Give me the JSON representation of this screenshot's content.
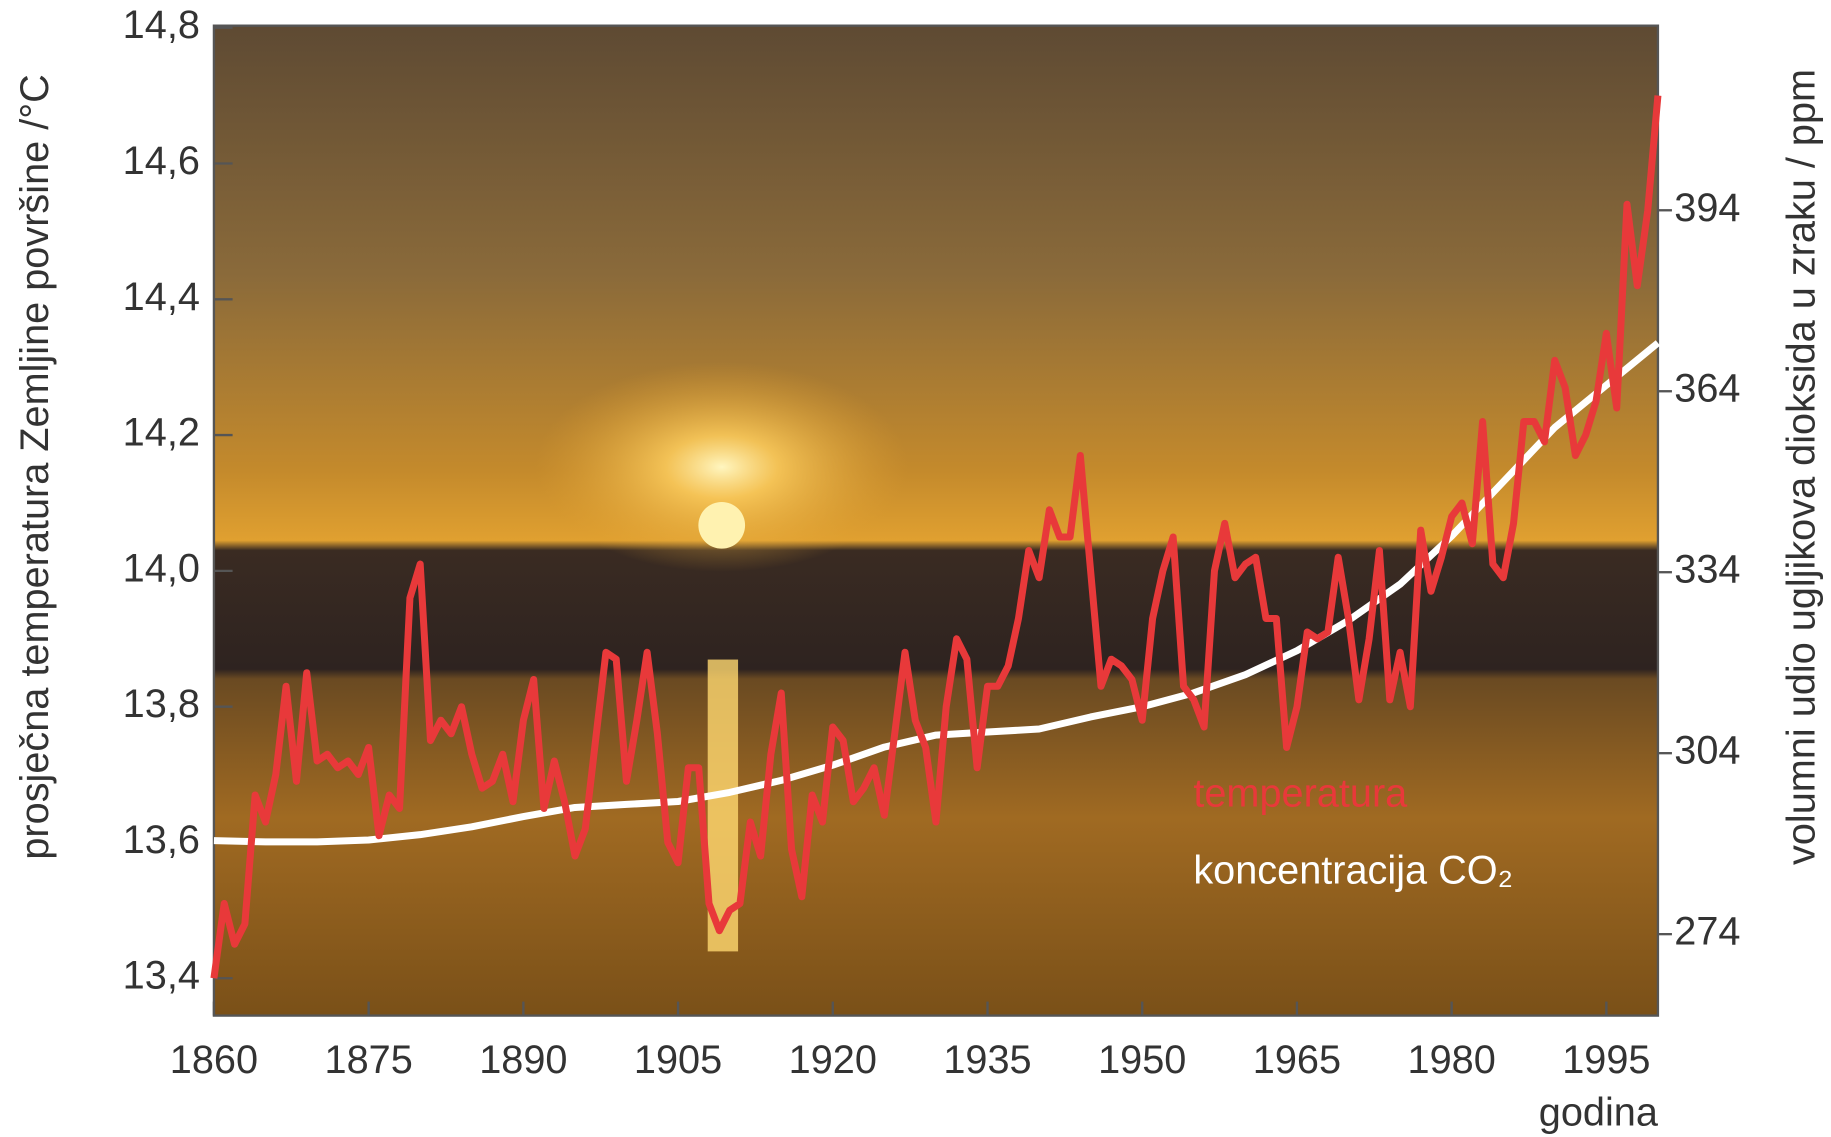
{
  "chart_data": {
    "type": "line",
    "x_label": "godina",
    "y_label": "prosječna temperatura Zemljine površine /°C",
    "y2_label": "volumni udio ugljikova dioksida u zraku / ppm",
    "xlim": [
      1860,
      2000
    ],
    "xticks": [
      1860,
      1875,
      1890,
      1905,
      1920,
      1935,
      1950,
      1965,
      1980,
      1995
    ],
    "ylim": [
      13.345,
      14.803
    ],
    "yticks": [
      {
        "value": 13.4,
        "label": "13,4"
      },
      {
        "value": 13.6,
        "label": "13,6"
      },
      {
        "value": 13.8,
        "label": "13,8"
      },
      {
        "value": 14.0,
        "label": "14,0"
      },
      {
        "value": 14.2,
        "label": "14,2"
      },
      {
        "value": 14.4,
        "label": "14,4"
      },
      {
        "value": 14.6,
        "label": "14,6"
      },
      {
        "value": 14.8,
        "label": "14,8"
      }
    ],
    "y2lim": [
      260.5,
      424.6
    ],
    "y2ticks": [
      274,
      304,
      334,
      364,
      394
    ],
    "series": [
      {
        "name": "temperatura",
        "color": "#e8393a",
        "x": [
          1860,
          1861,
          1862,
          1863,
          1864,
          1865,
          1866,
          1867,
          1868,
          1869,
          1870,
          1871,
          1872,
          1873,
          1874,
          1875,
          1876,
          1877,
          1878,
          1879,
          1880,
          1881,
          1882,
          1883,
          1884,
          1885,
          1886,
          1887,
          1888,
          1889,
          1890,
          1891,
          1892,
          1893,
          1894,
          1895,
          1896,
          1897,
          1898,
          1899,
          1900,
          1901,
          1902,
          1903,
          1904,
          1905,
          1906,
          1907,
          1908,
          1909,
          1910,
          1911,
          1912,
          1913,
          1914,
          1915,
          1916,
          1917,
          1918,
          1919,
          1920,
          1921,
          1922,
          1923,
          1924,
          1925,
          1926,
          1927,
          1928,
          1929,
          1930,
          1931,
          1932,
          1933,
          1934,
          1935,
          1936,
          1937,
          1938,
          1939,
          1940,
          1941,
          1942,
          1943,
          1944,
          1945,
          1946,
          1947,
          1948,
          1949,
          1950,
          1951,
          1952,
          1953,
          1954,
          1955,
          1956,
          1957,
          1958,
          1959,
          1960,
          1961,
          1962,
          1963,
          1964,
          1965,
          1966,
          1967,
          1968,
          1969,
          1970,
          1971,
          1972,
          1973,
          1974,
          1975,
          1976,
          1977,
          1978,
          1979,
          1980,
          1981,
          1982,
          1983,
          1984,
          1985,
          1986,
          1987,
          1988,
          1989,
          1990,
          1991,
          1992,
          1993,
          1994,
          1995,
          1996,
          1997,
          1998,
          1999,
          2000
        ],
        "values": [
          13.4,
          13.51,
          13.45,
          13.48,
          13.67,
          13.63,
          13.7,
          13.83,
          13.69,
          13.85,
          13.72,
          13.73,
          13.71,
          13.72,
          13.7,
          13.74,
          13.61,
          13.67,
          13.65,
          13.96,
          14.01,
          13.75,
          13.78,
          13.76,
          13.8,
          13.73,
          13.68,
          13.69,
          13.73,
          13.66,
          13.78,
          13.84,
          13.65,
          13.72,
          13.66,
          13.58,
          13.62,
          13.75,
          13.88,
          13.87,
          13.69,
          13.78,
          13.88,
          13.76,
          13.6,
          13.57,
          13.71,
          13.71,
          13.51,
          13.47,
          13.5,
          13.51,
          13.63,
          13.58,
          13.73,
          13.82,
          13.59,
          13.52,
          13.67,
          13.63,
          13.77,
          13.75,
          13.66,
          13.68,
          13.71,
          13.64,
          13.76,
          13.88,
          13.78,
          13.74,
          13.63,
          13.8,
          13.9,
          13.87,
          13.71,
          13.83,
          13.83,
          13.86,
          13.93,
          14.03,
          13.99,
          14.09,
          14.05,
          14.05,
          14.17,
          14.0,
          13.83,
          13.87,
          13.86,
          13.84,
          13.78,
          13.93,
          14.0,
          14.05,
          13.83,
          13.81,
          13.77,
          14.0,
          14.07,
          13.99,
          14.01,
          14.02,
          13.93,
          13.93,
          13.74,
          13.8,
          13.91,
          13.9,
          13.91,
          14.02,
          13.93,
          13.81,
          13.9,
          14.03,
          13.81,
          13.88,
          13.8,
          14.06,
          13.97,
          14.02,
          14.08,
          14.1,
          14.04,
          14.22,
          14.01,
          13.99,
          14.07,
          14.22,
          14.22,
          14.19,
          14.31,
          14.27,
          14.17,
          14.2,
          14.25,
          14.35,
          14.24,
          14.54,
          14.42,
          14.53,
          14.7
        ]
      },
      {
        "name": "koncentracija CO₂",
        "color": "#ffffff",
        "axis": "y2",
        "x": [
          1860,
          1865,
          1870,
          1875,
          1880,
          1885,
          1890,
          1895,
          1900,
          1905,
          1910,
          1915,
          1920,
          1925,
          1930,
          1935,
          1940,
          1945,
          1950,
          1955,
          1960,
          1965,
          1970,
          1975,
          1980,
          1985,
          1990,
          1995,
          2000
        ],
        "values": [
          289.5,
          289.3,
          289.3,
          289.6,
          290.5,
          291.8,
          293.5,
          295,
          295.5,
          296,
          297.5,
          299.5,
          302,
          305,
          307,
          307.5,
          308,
          310,
          311.7,
          314,
          317,
          321,
          326,
          332,
          340,
          349,
          358,
          365,
          372
        ]
      }
    ]
  }
}
